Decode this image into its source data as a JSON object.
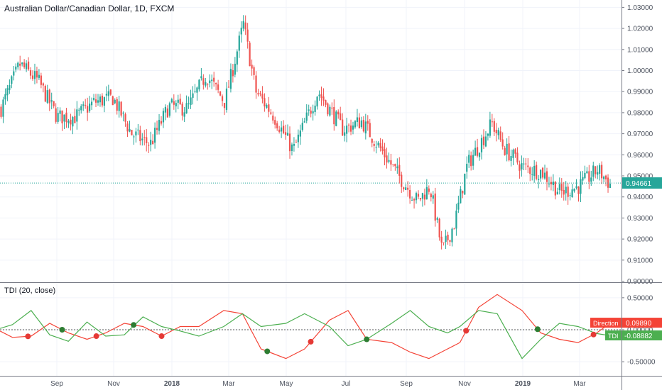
{
  "header": {
    "title": "Australian Dollar/Canadian Dollar, 1D, FXCM"
  },
  "indicator": {
    "label": "TDI (20, close)"
  },
  "colors": {
    "up": "#26a69a",
    "down": "#ef5350",
    "tdi": "#4caf50",
    "direction": "#f44336",
    "grid": "#f0f3fa",
    "axis_text": "#4c525e",
    "price_badge": "#26a69a"
  },
  "chart_data": [
    {
      "type": "candlestick",
      "title": "Australian Dollar/Canadian Dollar, 1D, FXCM",
      "x_ticks": [
        "Sep",
        "Nov",
        "2018",
        "Mar",
        "May",
        "Jul",
        "Sep",
        "Nov",
        "2019",
        "Mar"
      ],
      "y_ticks": [
        "0.90000",
        "0.91000",
        "0.92000",
        "0.93000",
        "0.94000",
        "0.95000",
        "0.96000",
        "0.97000",
        "0.98000",
        "0.99000",
        "1.00000",
        "1.01000",
        "1.02000",
        "1.03000"
      ],
      "ylim": [
        0.8995,
        1.0335
      ],
      "last_price": "0.94661",
      "grid": true,
      "close_path": [
        [
          0,
          0.982
        ],
        [
          0.03,
          1.003
        ],
        [
          0.06,
          0.995
        ],
        [
          0.09,
          0.978
        ],
        [
          0.12,
          0.978
        ],
        [
          0.15,
          0.985
        ],
        [
          0.18,
          0.987
        ],
        [
          0.21,
          0.97
        ],
        [
          0.24,
          0.965
        ],
        [
          0.27,
          0.983
        ],
        [
          0.3,
          0.982
        ],
        [
          0.33,
          0.998
        ],
        [
          0.36,
          0.985
        ],
        [
          0.39,
          1.022
        ],
        [
          0.41,
          0.99
        ],
        [
          0.44,
          0.978
        ],
        [
          0.47,
          0.962
        ],
        [
          0.51,
          0.99
        ],
        [
          0.55,
          0.972
        ],
        [
          0.58,
          0.976
        ],
        [
          0.61,
          0.963
        ],
        [
          0.64,
          0.95
        ],
        [
          0.67,
          0.938
        ],
        [
          0.69,
          0.945
        ],
        [
          0.71,
          0.914
        ],
        [
          0.73,
          0.928
        ],
        [
          0.75,
          0.955
        ],
        [
          0.79,
          0.975
        ],
        [
          0.81,
          0.963
        ],
        [
          0.84,
          0.954
        ],
        [
          0.87,
          0.952
        ],
        [
          0.9,
          0.942
        ],
        [
          0.93,
          0.945
        ],
        [
          0.96,
          0.953
        ],
        [
          0.98,
          0.946
        ]
      ]
    },
    {
      "type": "line",
      "title": "TDI (20, close)",
      "y_ticks": [
        "0.50000",
        "0.00000",
        "-0.50000"
      ],
      "ylim": [
        -0.72,
        0.72
      ],
      "series": [
        {
          "name": "Direction",
          "last_value": "0.09890",
          "points": [
            [
              0,
              -0.02
            ],
            [
              0.02,
              -0.12
            ],
            [
              0.05,
              -0.1
            ],
            [
              0.08,
              0.1
            ],
            [
              0.11,
              -0.05
            ],
            [
              0.14,
              -0.15
            ],
            [
              0.17,
              -0.05
            ],
            [
              0.2,
              0.1
            ],
            [
              0.23,
              0.05
            ],
            [
              0.26,
              -0.1
            ],
            [
              0.29,
              0.05
            ],
            [
              0.32,
              0.05
            ],
            [
              0.36,
              0.3
            ],
            [
              0.39,
              0.25
            ],
            [
              0.42,
              -0.3
            ],
            [
              0.46,
              -0.45
            ],
            [
              0.49,
              -0.3
            ],
            [
              0.53,
              0.15
            ],
            [
              0.56,
              0.3
            ],
            [
              0.59,
              -0.15
            ],
            [
              0.63,
              -0.2
            ],
            [
              0.66,
              -0.35
            ],
            [
              0.69,
              -0.45
            ],
            [
              0.72,
              -0.3
            ],
            [
              0.74,
              -0.2
            ],
            [
              0.77,
              0.35
            ],
            [
              0.8,
              0.55
            ],
            [
              0.84,
              0.3
            ],
            [
              0.87,
              -0.05
            ],
            [
              0.9,
              -0.15
            ],
            [
              0.93,
              -0.2
            ],
            [
              0.96,
              -0.05
            ],
            [
              0.98,
              0.09
            ]
          ]
        },
        {
          "name": "TDI",
          "last_value": "-0.08882",
          "points": [
            [
              0,
              0.02
            ],
            [
              0.02,
              0.08
            ],
            [
              0.05,
              0.3
            ],
            [
              0.08,
              -0.08
            ],
            [
              0.11,
              -0.18
            ],
            [
              0.14,
              0.12
            ],
            [
              0.17,
              -0.1
            ],
            [
              0.2,
              -0.08
            ],
            [
              0.23,
              0.2
            ],
            [
              0.26,
              0.05
            ],
            [
              0.29,
              -0.02
            ],
            [
              0.32,
              -0.1
            ],
            [
              0.36,
              0.05
            ],
            [
              0.39,
              0.25
            ],
            [
              0.42,
              0.05
            ],
            [
              0.46,
              0.1
            ],
            [
              0.49,
              0.25
            ],
            [
              0.53,
              0.05
            ],
            [
              0.56,
              -0.25
            ],
            [
              0.59,
              -0.15
            ],
            [
              0.63,
              0.1
            ],
            [
              0.66,
              0.3
            ],
            [
              0.69,
              0.05
            ],
            [
              0.72,
              -0.05
            ],
            [
              0.74,
              0.05
            ],
            [
              0.77,
              0.3
            ],
            [
              0.8,
              0.25
            ],
            [
              0.84,
              -0.45
            ],
            [
              0.87,
              -0.15
            ],
            [
              0.9,
              0.1
            ],
            [
              0.93,
              0.05
            ],
            [
              0.96,
              -0.06
            ],
            [
              0.98,
              -0.09
            ]
          ]
        }
      ],
      "cross_markers": [
        {
          "x": 0.045,
          "color": "red"
        },
        {
          "x": 0.1,
          "color": "green"
        },
        {
          "x": 0.155,
          "color": "red"
        },
        {
          "x": 0.215,
          "color": "green"
        },
        {
          "x": 0.26,
          "color": "red"
        },
        {
          "x": 0.43,
          "color": "green"
        },
        {
          "x": 0.5,
          "color": "red"
        },
        {
          "x": 0.59,
          "color": "green"
        },
        {
          "x": 0.75,
          "color": "red"
        },
        {
          "x": 0.865,
          "color": "green"
        },
        {
          "x": 0.955,
          "color": "red"
        }
      ]
    }
  ]
}
